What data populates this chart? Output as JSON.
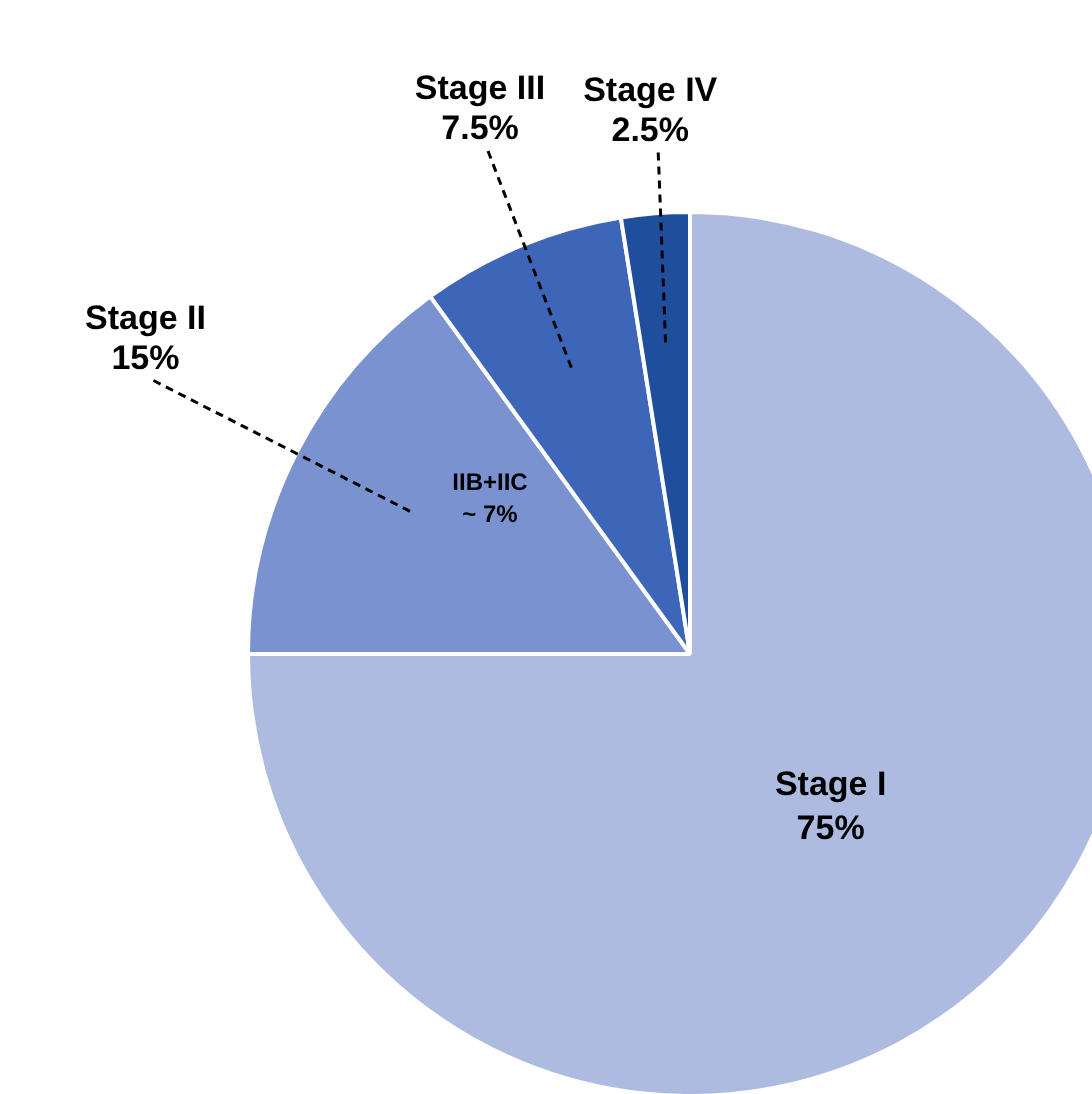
{
  "chart_data": {
    "type": "pie",
    "categories": [
      "Stage I",
      "Stage II",
      "Stage III",
      "Stage IV"
    ],
    "values": [
      75,
      15,
      7.5,
      2.5
    ],
    "colors": [
      "#aebbe0",
      "#7b92d0",
      "#3d66b8",
      "#1f4f9c"
    ],
    "value_labels": [
      "75%",
      "15%",
      "7.5%",
      "2.5%"
    ],
    "legend": false,
    "annotations": [
      "IIB+IIC ~ 7%"
    ]
  }
}
